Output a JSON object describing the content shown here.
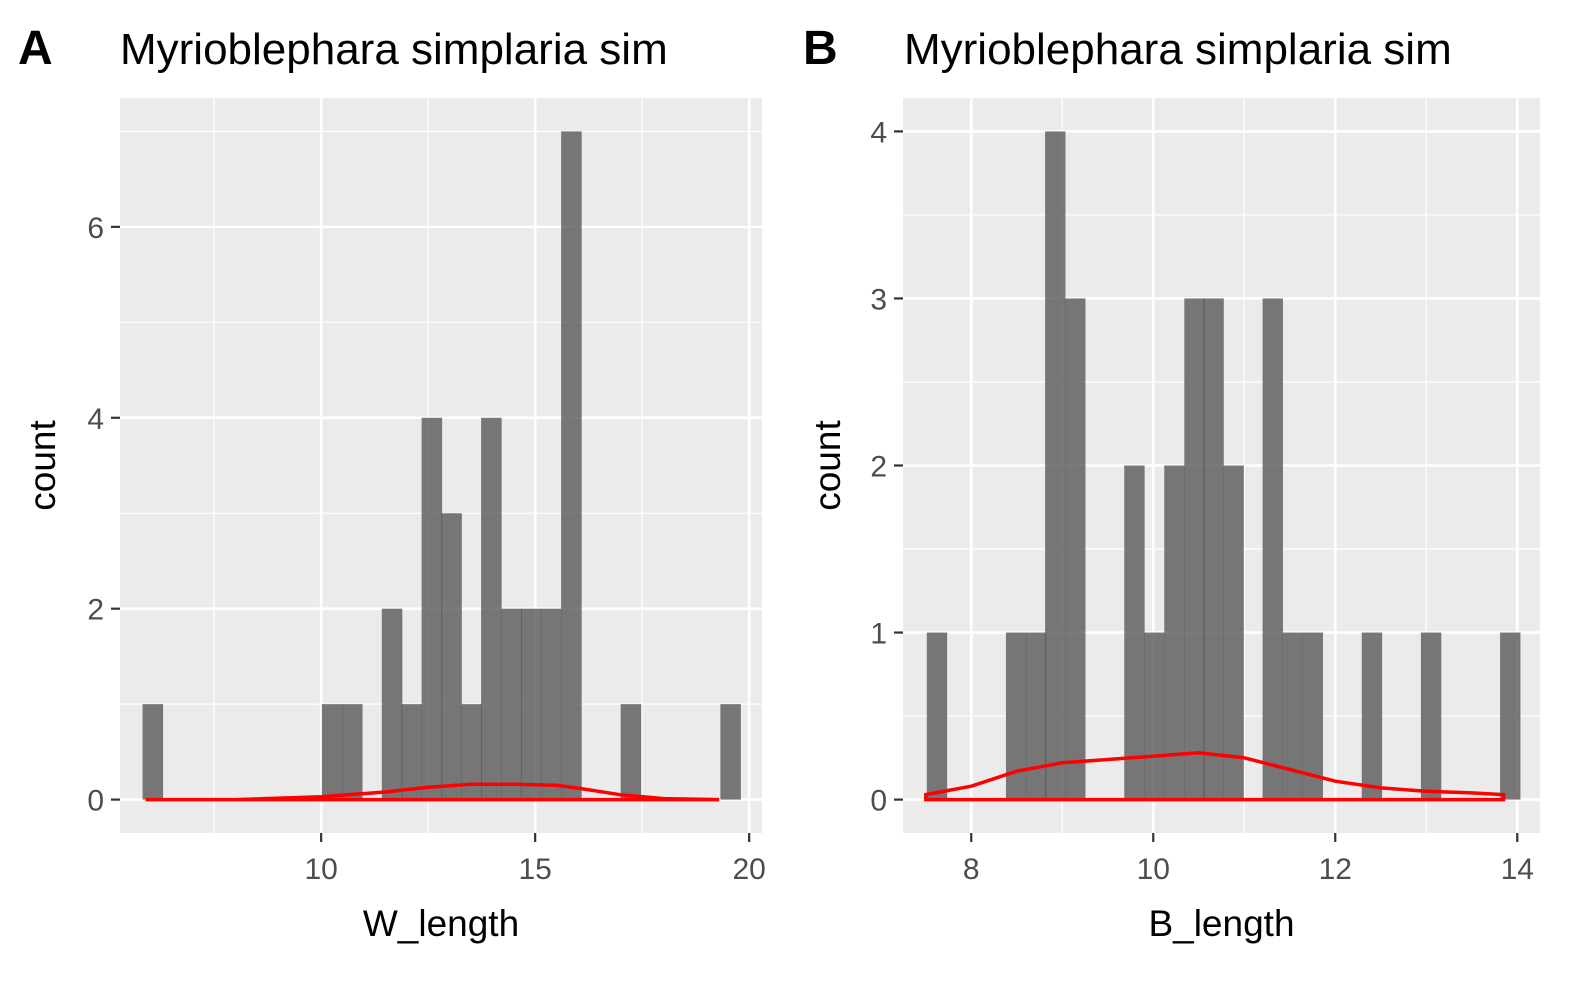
{
  "chart_data": [
    {
      "panel_tag": "A",
      "type": "bar",
      "title": "Myrioblephara simplaria sim",
      "xlabel": "W_length",
      "ylabel": "count",
      "xlim": [
        5.3,
        20.3
      ],
      "ylim": [
        -0.35,
        7.35
      ],
      "x_ticks": [
        10,
        15,
        20
      ],
      "y_ticks": [
        0,
        2,
        4,
        6
      ],
      "bin_width": 0.4655,
      "bins": [
        {
          "x": 6.06,
          "count": 1
        },
        {
          "x": 10.25,
          "count": 1
        },
        {
          "x": 10.72,
          "count": 1
        },
        {
          "x": 11.65,
          "count": 2
        },
        {
          "x": 12.11,
          "count": 1
        },
        {
          "x": 12.58,
          "count": 4
        },
        {
          "x": 13.04,
          "count": 3
        },
        {
          "x": 13.51,
          "count": 1
        },
        {
          "x": 13.97,
          "count": 4
        },
        {
          "x": 14.44,
          "count": 2
        },
        {
          "x": 14.9,
          "count": 2
        },
        {
          "x": 15.37,
          "count": 2
        },
        {
          "x": 15.84,
          "count": 7
        },
        {
          "x": 17.23,
          "count": 1
        },
        {
          "x": 19.56,
          "count": 1
        }
      ],
      "density_line": {
        "color": "#ff0000",
        "x": [
          5.9,
          8.0,
          10.0,
          11.5,
          12.5,
          13.5,
          14.5,
          15.5,
          16.0,
          17.0,
          18.0,
          19.3
        ],
        "y": [
          0.0,
          0.0,
          0.03,
          0.08,
          0.13,
          0.16,
          0.16,
          0.15,
          0.12,
          0.05,
          0.01,
          0.0
        ]
      }
    },
    {
      "panel_tag": "B",
      "type": "bar",
      "title": "Myrioblephara simplaria sim",
      "xlabel": "B_length",
      "ylabel": "count",
      "xlim": [
        7.25,
        14.25
      ],
      "ylim": [
        -0.2,
        4.2
      ],
      "x_ticks": [
        8,
        10,
        12,
        14
      ],
      "y_ticks": [
        0,
        1,
        2,
        3,
        4
      ],
      "bin_width": 0.2172,
      "bins": [
        {
          "x": 7.62,
          "count": 1
        },
        {
          "x": 8.49,
          "count": 1
        },
        {
          "x": 8.71,
          "count": 1
        },
        {
          "x": 8.92,
          "count": 4
        },
        {
          "x": 9.14,
          "count": 3
        },
        {
          "x": 9.79,
          "count": 2
        },
        {
          "x": 10.01,
          "count": 1
        },
        {
          "x": 10.23,
          "count": 2
        },
        {
          "x": 10.45,
          "count": 3
        },
        {
          "x": 10.66,
          "count": 3
        },
        {
          "x": 10.88,
          "count": 2
        },
        {
          "x": 11.31,
          "count": 3
        },
        {
          "x": 11.53,
          "count": 1
        },
        {
          "x": 11.75,
          "count": 1
        },
        {
          "x": 12.4,
          "count": 1
        },
        {
          "x": 13.05,
          "count": 1
        },
        {
          "x": 13.92,
          "count": 1
        }
      ],
      "density_line": {
        "color": "#ff0000",
        "x": [
          7.5,
          8.0,
          8.5,
          9.0,
          9.5,
          10.0,
          10.5,
          11.0,
          11.5,
          12.0,
          12.5,
          13.0,
          13.5,
          13.85
        ],
        "y": [
          0.03,
          0.08,
          0.17,
          0.22,
          0.24,
          0.26,
          0.28,
          0.25,
          0.18,
          0.11,
          0.07,
          0.05,
          0.04,
          0.03
        ]
      }
    }
  ]
}
